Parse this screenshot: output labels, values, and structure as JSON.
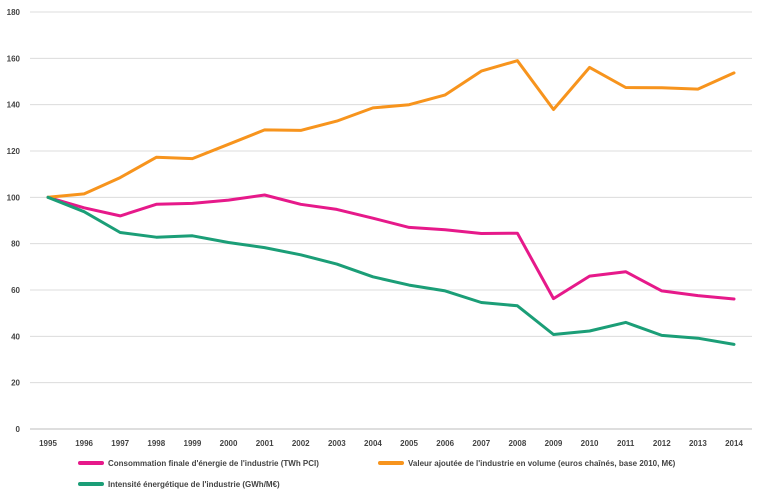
{
  "chart_data": {
    "type": "line",
    "x": [
      "1995",
      "1996",
      "1997",
      "1998",
      "1999",
      "2000",
      "2001",
      "2002",
      "2003",
      "2004",
      "2005",
      "2006",
      "2007",
      "2008",
      "2009",
      "2010",
      "2011",
      "2012",
      "2013",
      "2014"
    ],
    "ylim": [
      0,
      180
    ],
    "yticks": [
      0,
      20,
      40,
      60,
      80,
      100,
      120,
      140,
      160,
      180
    ],
    "grid": true,
    "legend_position": "bottom",
    "series": [
      {
        "name": "Consommation finale d'énergie de l'industrie (TWh PCI)",
        "color": "#e6198a",
        "values": [
          100,
          95.5,
          92,
          97,
          97.4,
          98.8,
          101,
          97,
          94.8,
          91,
          87,
          86,
          84.4,
          84.5,
          56.3,
          66,
          67.9,
          59.6,
          57.6,
          56.1
        ]
      },
      {
        "name": "Valeur ajoutée de l'industrie en volume (euros chaînés, base 2010, M€)",
        "color": "#f7941d",
        "values": [
          100,
          101.5,
          108.5,
          117.3,
          116.7,
          122.9,
          129.1,
          128.9,
          132.9,
          138.6,
          140,
          144.2,
          154.5,
          159,
          137.9,
          156.1,
          147.4,
          147.3,
          146.7,
          153.7
        ]
      },
      {
        "name": "Intensité énergétique de l'industrie (GWh/M€)",
        "color": "#1b9e77",
        "values": [
          100,
          93.8,
          84.8,
          82.8,
          83.4,
          80.5,
          78.3,
          75.2,
          71.2,
          65.7,
          62.1,
          59.6,
          54.6,
          53.2,
          40.8,
          42.3,
          46,
          40.4,
          39.2,
          36.5
        ]
      }
    ]
  }
}
